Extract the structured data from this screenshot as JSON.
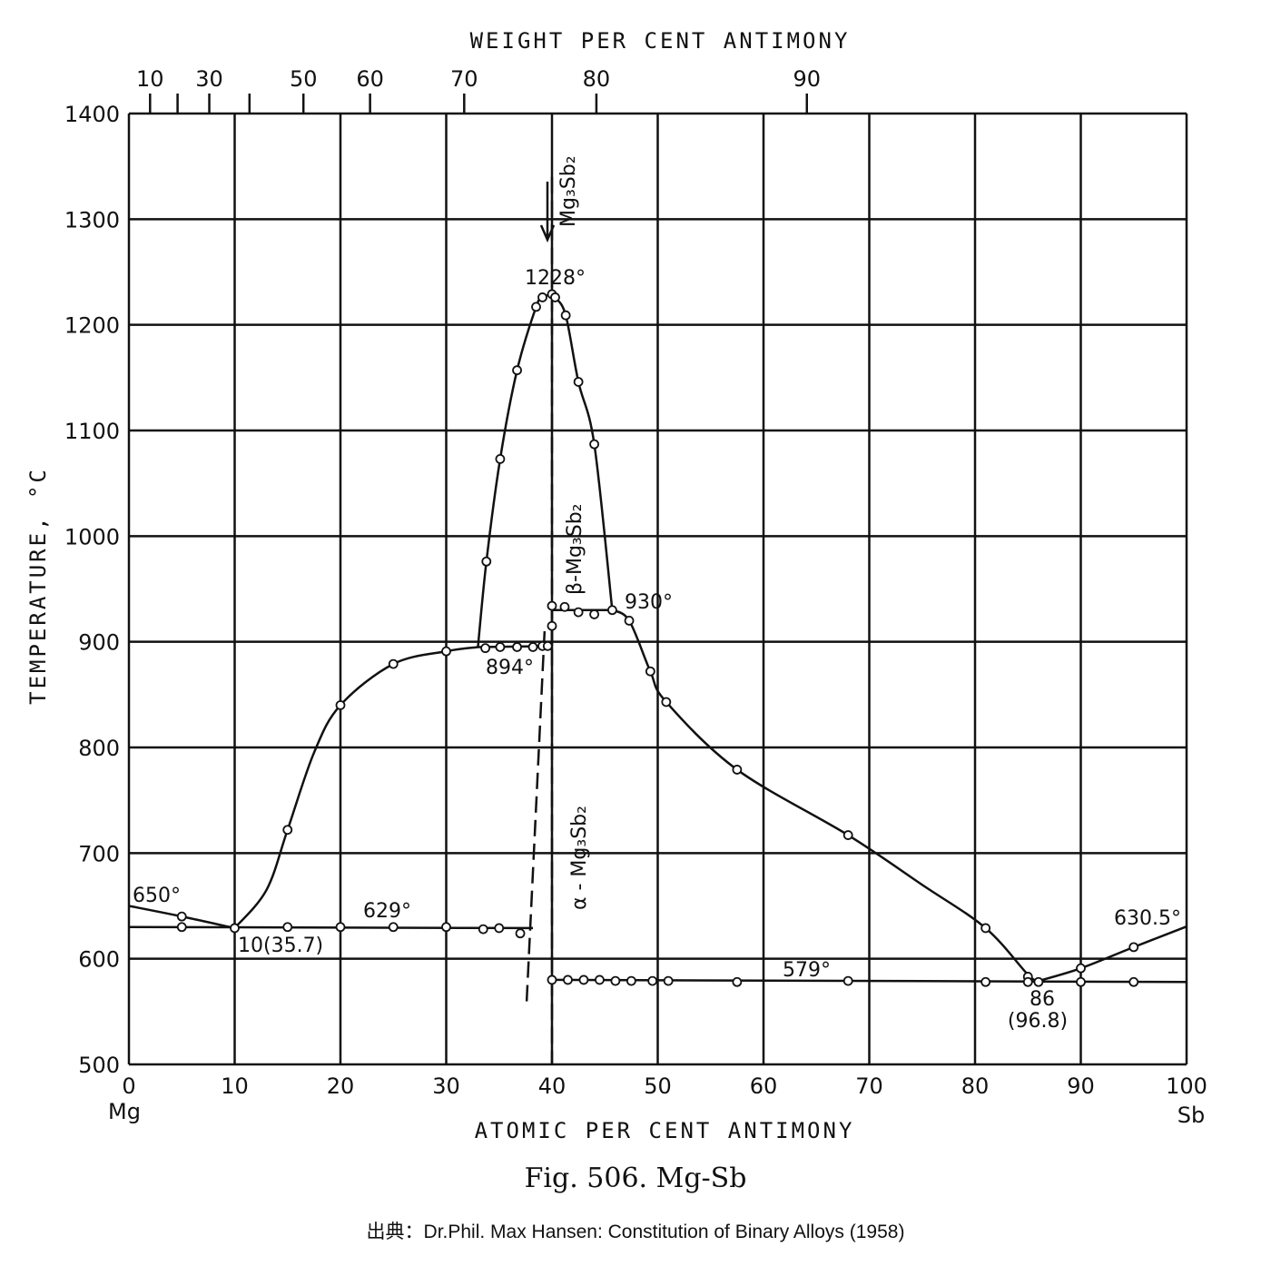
{
  "chart_data": {
    "type": "line",
    "title": "Fig. 506. Mg-Sb",
    "source": "出典：Dr.Phil. Max Hansen: Constitution of Binary Alloys (1958)",
    "xlabel": "ATOMIC PER CENT ANTIMONY",
    "x2label": "WEIGHT PER CENT ANTIMONY",
    "ylabel": "TEMPERATURE, °C",
    "xlim": [
      0,
      100
    ],
    "ylim": [
      500,
      1400
    ],
    "grid": true,
    "x_ticks": [
      0,
      10,
      20,
      30,
      40,
      50,
      60,
      70,
      80,
      90,
      100
    ],
    "x_tick_labels": [
      "0",
      "10",
      "20",
      "30",
      "40",
      "50",
      "60",
      "70",
      "80",
      "90",
      "100"
    ],
    "x_end_labels": {
      "left": "Mg",
      "right": "Sb"
    },
    "y_ticks": [
      500,
      600,
      700,
      800,
      900,
      1000,
      1100,
      1200,
      1300,
      1400
    ],
    "y_tick_labels": [
      "500",
      "600",
      "700",
      "800",
      "900",
      "1000",
      "1100",
      "1200",
      "1300",
      "1400"
    ],
    "top_axis": [
      {
        "wt": 10,
        "at": 2.0,
        "label": "10"
      },
      {
        "wt": 20,
        "at": 4.6,
        "label": ""
      },
      {
        "wt": 30,
        "at": 7.6,
        "label": "30"
      },
      {
        "wt": 40,
        "at": 11.4,
        "label": ""
      },
      {
        "wt": 50,
        "at": 16.5,
        "label": "50"
      },
      {
        "wt": 60,
        "at": 22.8,
        "label": "60"
      },
      {
        "wt": 70,
        "at": 31.7,
        "label": "70"
      },
      {
        "wt": 80,
        "at": 44.2,
        "label": "80"
      },
      {
        "wt": 90,
        "at": 64.1,
        "label": "90"
      }
    ],
    "series": [
      {
        "name": "liquidus-mg-side",
        "style": "solid",
        "points": [
          [
            0,
            650
          ],
          [
            5,
            640
          ],
          [
            10,
            629
          ]
        ]
      },
      {
        "name": "liquidus-left-of-compound",
        "style": "solid",
        "points": [
          [
            10,
            629
          ],
          [
            13,
            665
          ],
          [
            15,
            722
          ],
          [
            17.5,
            795
          ],
          [
            20,
            840
          ],
          [
            25,
            879
          ],
          [
            30,
            891
          ],
          [
            33,
            895
          ]
        ]
      },
      {
        "name": "beta-liquidus-left",
        "style": "solid",
        "points": [
          [
            33,
            895
          ],
          [
            33.8,
            976
          ],
          [
            35.1,
            1073
          ],
          [
            36.7,
            1157
          ],
          [
            38.5,
            1217
          ],
          [
            39.1,
            1226
          ],
          [
            40,
            1229
          ]
        ]
      },
      {
        "name": "beta-liquidus-right",
        "style": "solid",
        "points": [
          [
            40,
            1229
          ],
          [
            40.3,
            1226
          ],
          [
            41.3,
            1209
          ],
          [
            42.5,
            1146
          ],
          [
            44,
            1087
          ],
          [
            45.7,
            930
          ]
        ]
      },
      {
        "name": "liquidus-sb-side",
        "style": "solid",
        "points": [
          [
            45.7,
            930
          ],
          [
            47.3,
            920
          ],
          [
            49.3,
            872
          ],
          [
            50.8,
            843
          ],
          [
            57.5,
            779
          ],
          [
            68,
            717
          ],
          [
            75,
            670
          ],
          [
            81,
            629
          ],
          [
            85,
            585
          ],
          [
            86,
            579
          ]
        ]
      },
      {
        "name": "liquidus-sb-end",
        "style": "solid",
        "points": [
          [
            86,
            579
          ],
          [
            90,
            591
          ],
          [
            95,
            611
          ],
          [
            100,
            630.5
          ]
        ]
      },
      {
        "name": "eutectic-629",
        "style": "solid",
        "points": [
          [
            0,
            630
          ],
          [
            38.2,
            629
          ]
        ]
      },
      {
        "name": "eutectic-894",
        "style": "solid",
        "points": [
          [
            33,
            895
          ],
          [
            40,
            896
          ]
        ]
      },
      {
        "name": "peritectic-930",
        "style": "solid",
        "points": [
          [
            40,
            930
          ],
          [
            45.7,
            930
          ]
        ]
      },
      {
        "name": "step-40",
        "style": "solid",
        "points": [
          [
            40,
            896
          ],
          [
            40,
            930
          ]
        ]
      },
      {
        "name": "eutectic-579",
        "style": "solid",
        "points": [
          [
            40,
            580
          ],
          [
            100,
            578
          ]
        ]
      },
      {
        "name": "alpha-boundary",
        "style": "dashed",
        "points": [
          [
            39.3,
            910
          ],
          [
            37.6,
            558
          ]
        ]
      },
      {
        "name": "compound-Mg3Sb2",
        "style": "dashed",
        "points": [
          [
            40,
            1340
          ],
          [
            40,
            500
          ]
        ]
      }
    ],
    "data_points": [
      [
        5,
        640
      ],
      [
        5,
        630
      ],
      [
        10,
        629
      ],
      [
        15,
        722
      ],
      [
        20,
        840
      ],
      [
        25,
        879
      ],
      [
        30,
        891
      ],
      [
        15,
        630
      ],
      [
        20,
        630
      ],
      [
        25,
        630
      ],
      [
        30,
        630
      ],
      [
        33.5,
        628
      ],
      [
        35,
        629
      ],
      [
        37,
        624
      ],
      [
        33.7,
        894
      ],
      [
        35.1,
        895
      ],
      [
        36.7,
        895
      ],
      [
        38.2,
        895
      ],
      [
        39.1,
        896
      ],
      [
        39.6,
        896
      ],
      [
        33.8,
        976
      ],
      [
        35.1,
        1073
      ],
      [
        36.7,
        1157
      ],
      [
        38.5,
        1217
      ],
      [
        39.1,
        1226
      ],
      [
        40,
        1229
      ],
      [
        40.3,
        1226
      ],
      [
        41.3,
        1209
      ],
      [
        42.5,
        1146
      ],
      [
        44,
        1087
      ],
      [
        40,
        915
      ],
      [
        40,
        934
      ],
      [
        41.2,
        933
      ],
      [
        42.5,
        928
      ],
      [
        44,
        926
      ],
      [
        45.7,
        930
      ],
      [
        47.3,
        920
      ],
      [
        49.3,
        872
      ],
      [
        50.8,
        843
      ],
      [
        57.5,
        779
      ],
      [
        68,
        717
      ],
      [
        81,
        629
      ],
      [
        85,
        583
      ],
      [
        90,
        591
      ],
      [
        95,
        611
      ],
      [
        40,
        580
      ],
      [
        41.5,
        580
      ],
      [
        43,
        580
      ],
      [
        44.5,
        580
      ],
      [
        46,
        579
      ],
      [
        47.5,
        579
      ],
      [
        49.5,
        579
      ],
      [
        51,
        579
      ],
      [
        57.5,
        578
      ],
      [
        68,
        579
      ],
      [
        81,
        578
      ],
      [
        85,
        578
      ],
      [
        86,
        578
      ],
      [
        90,
        578
      ],
      [
        95,
        578
      ]
    ],
    "annotations": {
      "peak": "1228°",
      "peritectic": "930°",
      "eutectic_left_compound": "894°",
      "mg_melting": "650°",
      "eutectic_mg": "629°",
      "eutectic_mg_comp": "10(35.7)",
      "eutectic_sb": "579°",
      "eutectic_sb_comp": "86",
      "eutectic_sb_wt": "(96.8)",
      "sb_melting": "630.5°",
      "compound": "Mg₃Sb₂",
      "beta_phase": "β-Mg₃Sb₂",
      "alpha_phase": "α - Mg₃Sb₂"
    }
  }
}
